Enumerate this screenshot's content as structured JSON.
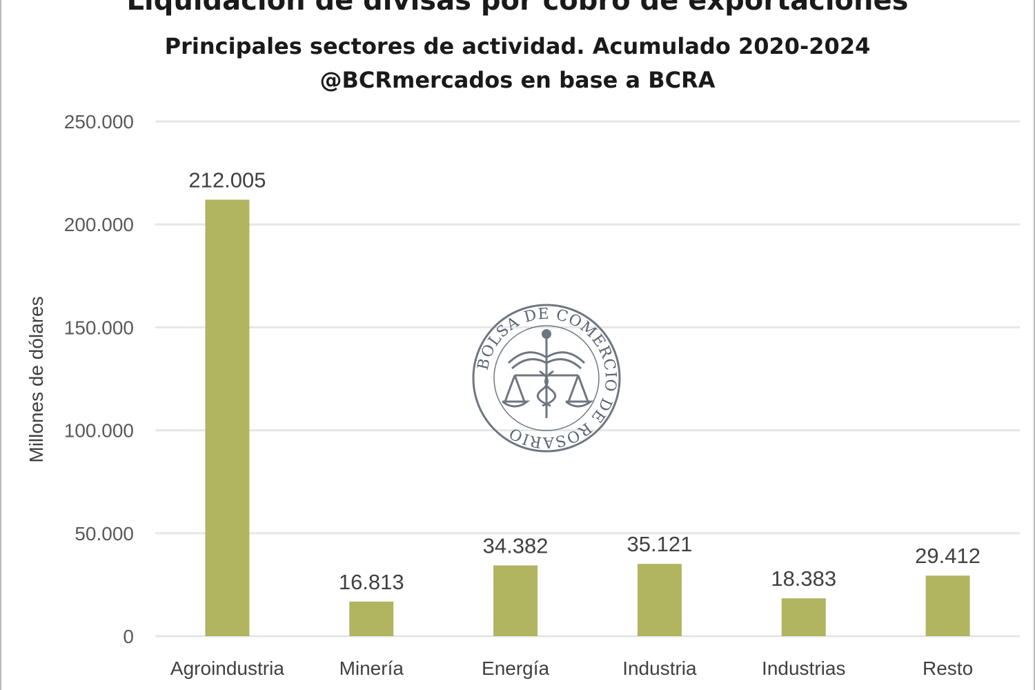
{
  "chart_data": {
    "type": "bar",
    "title": "Liquidación de divisas por cobro de exportaciones",
    "subtitle": "Principales sectores de actividad. Acumulado 2020-2024",
    "source": "@BCRmercados en base a BCRA",
    "ylabel": "Millones de dólares",
    "xlabel": "",
    "ylim": [
      0,
      250000
    ],
    "yticks": [
      0,
      50000,
      100000,
      150000,
      200000,
      250000
    ],
    "ytick_labels": [
      "0",
      "50.000",
      "100.000",
      "150.000",
      "200.000",
      "250.000"
    ],
    "grid": true,
    "categories": [
      "Agroindustria",
      "Minería",
      "Energía",
      "Industria",
      "Industrias",
      "Resto"
    ],
    "values": [
      212005,
      16813,
      34382,
      35121,
      18383,
      29412
    ],
    "data_labels": [
      "212.005",
      "16.813",
      "34.382",
      "35.121",
      "18.383",
      "29.412"
    ],
    "bar_color": "#b1b55f",
    "grid_color": "#e6e6e6"
  },
  "watermark": {
    "text": "BOLSA DE COMERCIO DE ROSARIO",
    "color": "#5a6470"
  }
}
